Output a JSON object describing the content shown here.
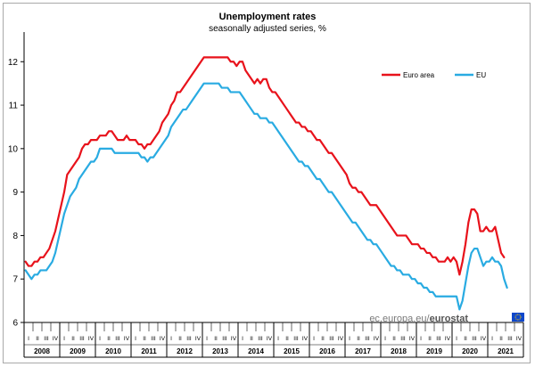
{
  "chart_data": {
    "type": "line",
    "title": "Unemployment rates",
    "subtitle": "seasonally adjusted series, %",
    "xlabel": "",
    "ylabel": "",
    "ylim": [
      6,
      12.6
    ],
    "yticks": [
      6,
      7,
      8,
      9,
      10,
      11,
      12
    ],
    "grid": false,
    "legend_position": "top-right",
    "start": "2008-01",
    "quarter_labels": [
      "I",
      "II",
      "III",
      "IV"
    ],
    "years": [
      "2008",
      "2009",
      "2010",
      "2011",
      "2012",
      "2013",
      "2014",
      "2015",
      "2016",
      "2017",
      "2018",
      "2019",
      "2020",
      "2021"
    ],
    "series": [
      {
        "name": "Euro area",
        "color": "#e8121b",
        "values": [
          7.4,
          7.3,
          7.3,
          7.4,
          7.4,
          7.5,
          7.5,
          7.6,
          7.7,
          7.9,
          8.1,
          8.4,
          8.7,
          9.0,
          9.4,
          9.5,
          9.6,
          9.7,
          9.8,
          10.0,
          10.1,
          10.1,
          10.2,
          10.2,
          10.2,
          10.3,
          10.3,
          10.3,
          10.4,
          10.4,
          10.3,
          10.2,
          10.2,
          10.2,
          10.3,
          10.2,
          10.2,
          10.2,
          10.1,
          10.1,
          10.0,
          10.1,
          10.1,
          10.2,
          10.3,
          10.4,
          10.6,
          10.7,
          10.8,
          11.0,
          11.1,
          11.3,
          11.3,
          11.4,
          11.5,
          11.6,
          11.7,
          11.8,
          11.9,
          12.0,
          12.1,
          12.1,
          12.1,
          12.1,
          12.1,
          12.1,
          12.1,
          12.1,
          12.1,
          12.0,
          12.0,
          11.9,
          12.0,
          12.0,
          11.8,
          11.7,
          11.6,
          11.5,
          11.6,
          11.5,
          11.6,
          11.6,
          11.4,
          11.3,
          11.3,
          11.2,
          11.1,
          11.0,
          10.9,
          10.8,
          10.7,
          10.6,
          10.6,
          10.5,
          10.5,
          10.4,
          10.4,
          10.3,
          10.2,
          10.2,
          10.1,
          10.0,
          9.9,
          9.9,
          9.8,
          9.7,
          9.6,
          9.5,
          9.4,
          9.2,
          9.1,
          9.1,
          9.0,
          9.0,
          8.9,
          8.8,
          8.7,
          8.7,
          8.7,
          8.6,
          8.5,
          8.4,
          8.3,
          8.2,
          8.1,
          8.0,
          8.0,
          8.0,
          8.0,
          7.9,
          7.8,
          7.8,
          7.8,
          7.7,
          7.7,
          7.6,
          7.6,
          7.5,
          7.5,
          7.4,
          7.4,
          7.4,
          7.5,
          7.4,
          7.5,
          7.4,
          7.1,
          7.4,
          7.8,
          8.3,
          8.6,
          8.6,
          8.5,
          8.1,
          8.1,
          8.2,
          8.1,
          8.1,
          8.2,
          7.9,
          7.6,
          7.5
        ]
      },
      {
        "name": "EU",
        "color": "#29abe2",
        "values": [
          7.2,
          7.1,
          7.0,
          7.1,
          7.1,
          7.2,
          7.2,
          7.2,
          7.3,
          7.4,
          7.6,
          7.9,
          8.2,
          8.5,
          8.7,
          8.9,
          9.0,
          9.1,
          9.3,
          9.4,
          9.5,
          9.6,
          9.7,
          9.7,
          9.8,
          10.0,
          10.0,
          10.0,
          10.0,
          10.0,
          9.9,
          9.9,
          9.9,
          9.9,
          9.9,
          9.9,
          9.9,
          9.9,
          9.9,
          9.8,
          9.8,
          9.7,
          9.8,
          9.8,
          9.9,
          10.0,
          10.1,
          10.2,
          10.3,
          10.5,
          10.6,
          10.7,
          10.8,
          10.9,
          10.9,
          11.0,
          11.1,
          11.2,
          11.3,
          11.4,
          11.5,
          11.5,
          11.5,
          11.5,
          11.5,
          11.5,
          11.4,
          11.4,
          11.4,
          11.3,
          11.3,
          11.3,
          11.3,
          11.2,
          11.1,
          11.0,
          10.9,
          10.8,
          10.8,
          10.7,
          10.7,
          10.7,
          10.6,
          10.6,
          10.5,
          10.4,
          10.3,
          10.2,
          10.1,
          10.0,
          9.9,
          9.8,
          9.7,
          9.7,
          9.6,
          9.6,
          9.5,
          9.4,
          9.3,
          9.3,
          9.2,
          9.1,
          9.0,
          9.0,
          8.9,
          8.8,
          8.7,
          8.6,
          8.5,
          8.4,
          8.3,
          8.3,
          8.2,
          8.1,
          8.0,
          7.9,
          7.9,
          7.8,
          7.8,
          7.7,
          7.6,
          7.5,
          7.4,
          7.3,
          7.3,
          7.2,
          7.2,
          7.1,
          7.1,
          7.1,
          7.0,
          7.0,
          6.9,
          6.9,
          6.8,
          6.8,
          6.7,
          6.7,
          6.6,
          6.6,
          6.6,
          6.6,
          6.6,
          6.6,
          6.6,
          6.6,
          6.3,
          6.5,
          6.9,
          7.3,
          7.6,
          7.7,
          7.7,
          7.5,
          7.3,
          7.4,
          7.4,
          7.5,
          7.4,
          7.4,
          7.3,
          7.0,
          6.8
        ]
      }
    ]
  },
  "credit": {
    "domain": "ec.europa.eu/",
    "brand": "eurostat",
    "flag_color": "#0e47cb",
    "star_color": "#ffcc00"
  }
}
